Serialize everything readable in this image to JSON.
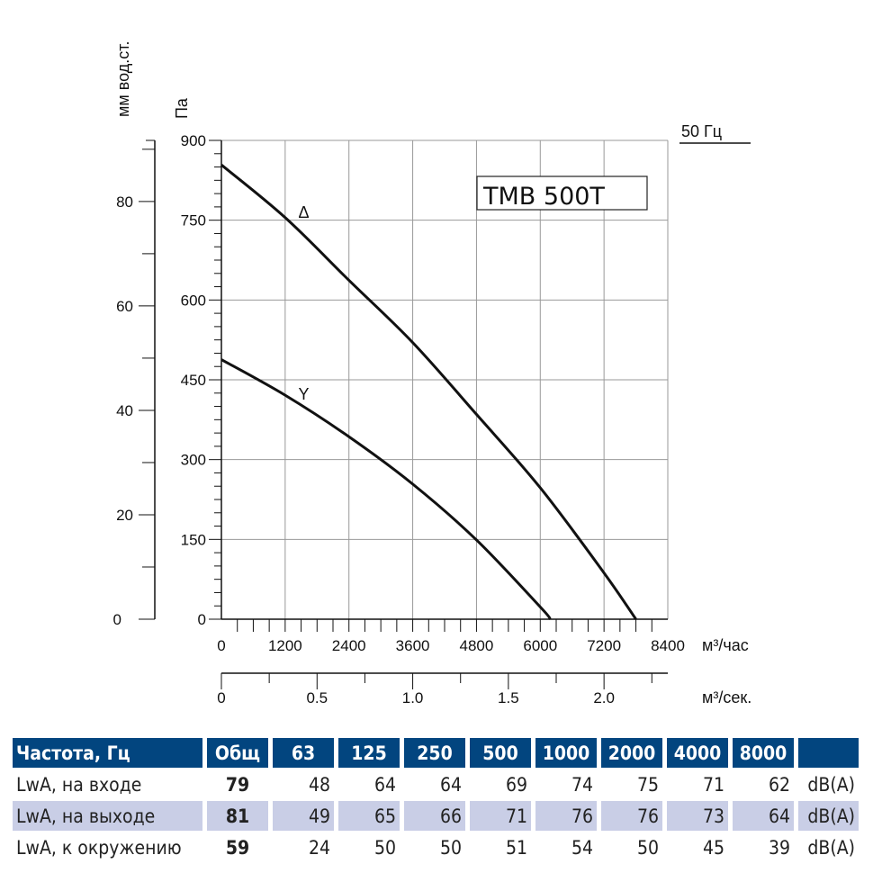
{
  "chart_data": {
    "type": "line",
    "model_label": "TMB 500T",
    "frequency_label": "50 Гц",
    "ylabel": "Па",
    "ylabel_secondary": "мм вод.ст.",
    "xlabel": "м³/час",
    "xlabel_secondary": "м³/сек.",
    "xlim": [
      0,
      8400
    ],
    "ylim": [
      0,
      900
    ],
    "ylim_secondary": [
      0,
      91.7
    ],
    "x_ticks": [
      "0",
      "1200",
      "2400",
      "3600",
      "4800",
      "6000",
      "7200",
      "8400"
    ],
    "y_ticks": [
      "0",
      "150",
      "300",
      "450",
      "600",
      "750",
      "900"
    ],
    "y_secondary_ticks": [
      "0",
      "20",
      "40",
      "60",
      "80"
    ],
    "x_secondary_ticks": [
      "0",
      "0.5",
      "1.0",
      "1.5",
      "2.0"
    ],
    "grid": true,
    "series": [
      {
        "name": "Δ",
        "x": [
          0,
          1200,
          2400,
          3600,
          4800,
          6000,
          7200,
          7800
        ],
        "y": [
          854,
          755,
          637,
          520,
          385,
          247,
          87,
          0
        ]
      },
      {
        "name": "Y",
        "x": [
          0,
          1200,
          2400,
          3600,
          4800,
          6000,
          6190
        ],
        "y": [
          488,
          421,
          343,
          254,
          149,
          23,
          0
        ]
      }
    ]
  },
  "table": {
    "headers": [
      "Частота, Гц",
      "Общ",
      "63",
      "125",
      "250",
      "500",
      "1000",
      "2000",
      "4000",
      "8000",
      ""
    ],
    "rows": [
      {
        "label": "LwA, на входе",
        "total": "79",
        "values": [
          "48",
          "64",
          "64",
          "69",
          "74",
          "75",
          "71",
          "62"
        ],
        "unit": "dB(A)"
      },
      {
        "label": "LwA, на выходе",
        "total": "81",
        "values": [
          "49",
          "65",
          "66",
          "71",
          "76",
          "76",
          "73",
          "64"
        ],
        "unit": "dB(A)"
      },
      {
        "label": "LwA, к окружению",
        "total": "59",
        "values": [
          "24",
          "50",
          "50",
          "51",
          "54",
          "50",
          "45",
          "39"
        ],
        "unit": "dB(A)"
      }
    ],
    "header_color": "#02457f",
    "alt_row_color": "#c9cee6"
  }
}
